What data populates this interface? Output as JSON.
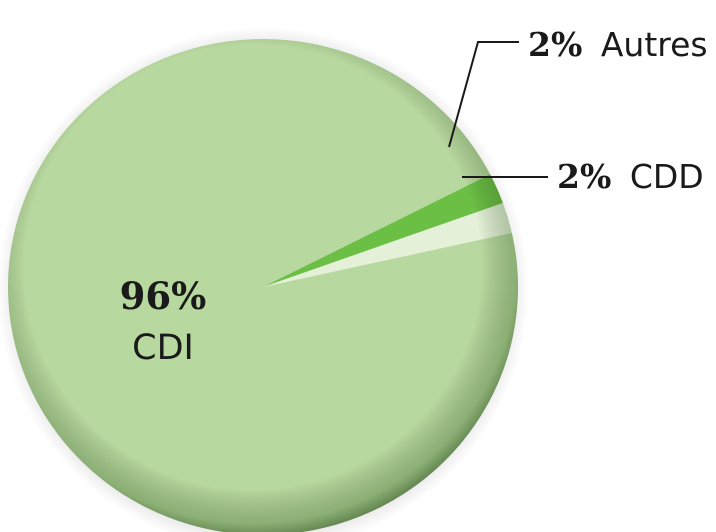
{
  "chart_data": {
    "type": "pie",
    "title": "",
    "legend": "none",
    "slices": [
      {
        "label": "CDI",
        "value": 96,
        "value_label": "96%",
        "color": "#b7d89e"
      },
      {
        "label": "Autres",
        "value": 2,
        "value_label": "2%",
        "color": "#6cbf45"
      },
      {
        "label": "CDD",
        "value": 2,
        "value_label": "2%",
        "color": "#e4f1d8"
      }
    ]
  }
}
